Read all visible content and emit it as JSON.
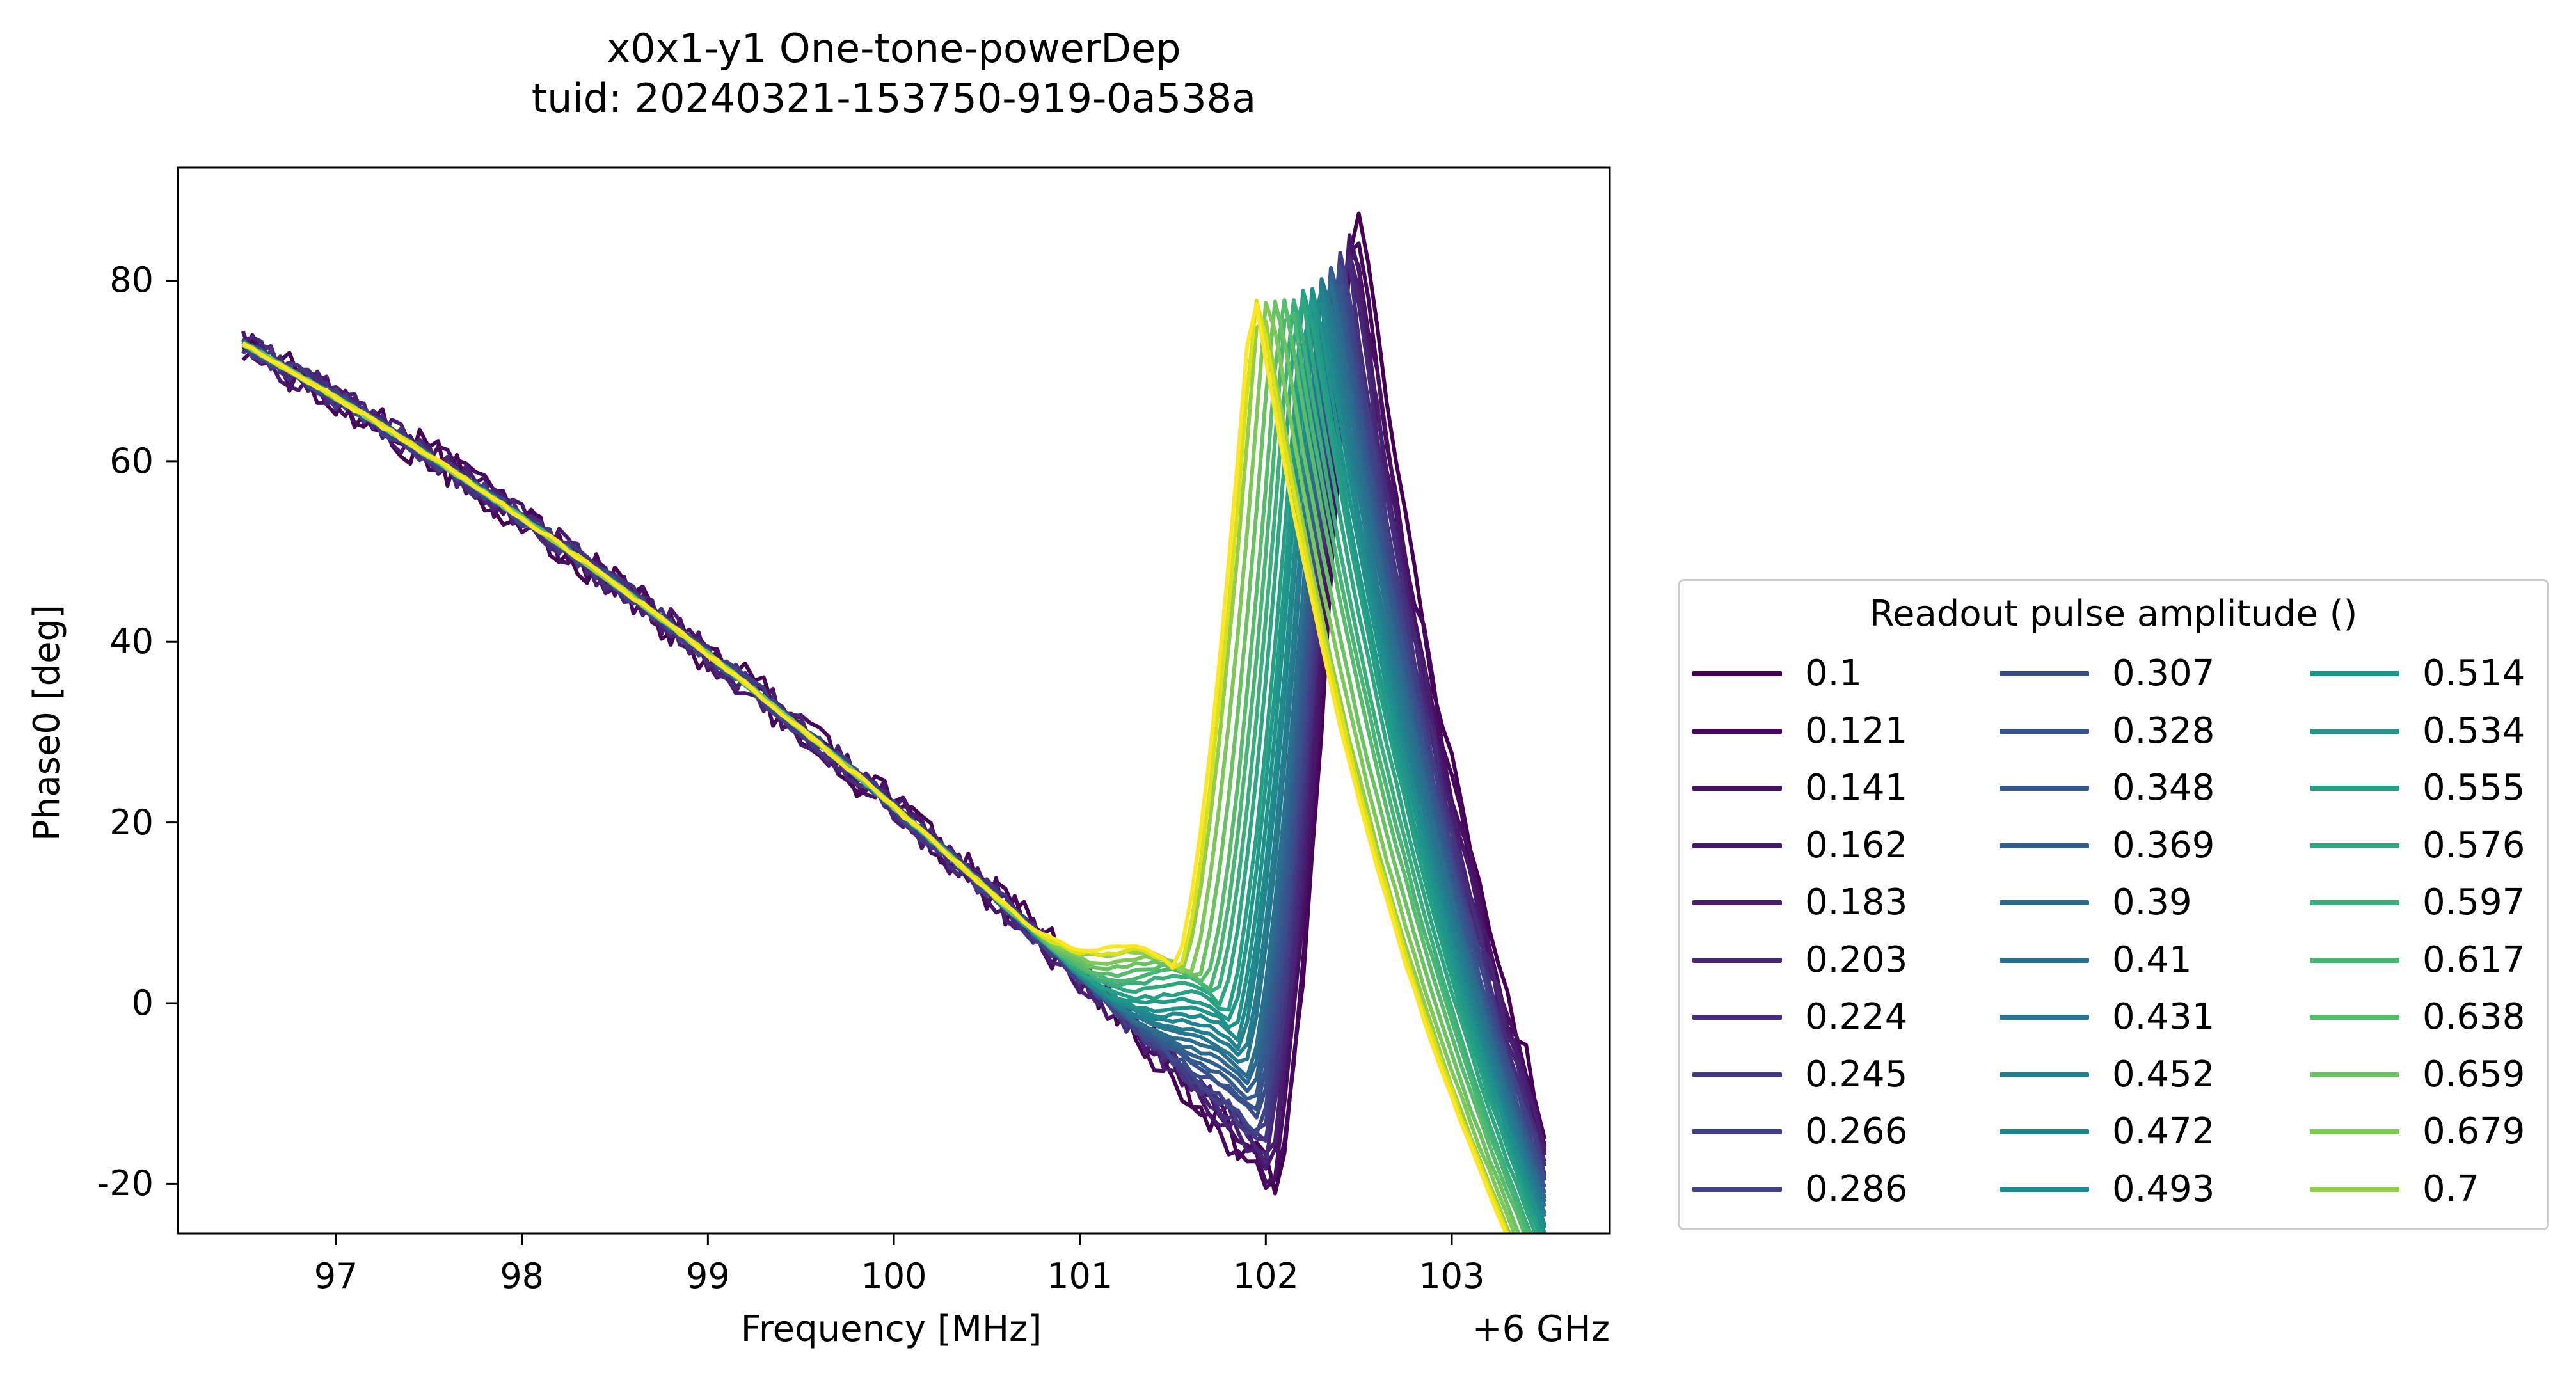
{
  "chart_data": {
    "type": "line",
    "title": "x0x1-y1 One-tone-powerDep",
    "subtitle": "tuid: 20240321-153750-919-0a538a",
    "xlabel": "Frequency [MHz]",
    "x_offset_label": "+6 GHz",
    "ylabel": "Phase0 [deg]",
    "xlim": [
      96.15,
      103.85
    ],
    "ylim": [
      -25.5,
      92.5
    ],
    "xticks": [
      "97",
      "98",
      "99",
      "100",
      "101",
      "102",
      "103"
    ],
    "yticks": [
      "-20",
      "0",
      "20",
      "40",
      "60",
      "80"
    ],
    "grid": false,
    "legend": {
      "title": "Readout pulse amplitude ()",
      "placement": "outside-right-bottom",
      "columns": 3
    },
    "colormap": "viridis",
    "x_range": [
      96.5,
      103.5
    ],
    "series": [
      {
        "name": "0.1",
        "color": "#440154",
        "f0": 102.05,
        "dip": -20,
        "peak": 87
      },
      {
        "name": "0.121",
        "color": "#46085c",
        "f0": 102.04,
        "dip": -20.5,
        "peak": 85.5
      },
      {
        "name": "0.141",
        "color": "#471063",
        "f0": 102.03,
        "dip": -19,
        "peak": 85
      },
      {
        "name": "0.162",
        "color": "#481769",
        "f0": 102.02,
        "dip": -18,
        "peak": 84
      },
      {
        "name": "0.183",
        "color": "#481f70",
        "f0": 102.01,
        "dip": -17,
        "peak": 84
      },
      {
        "name": "0.203",
        "color": "#472676",
        "f0": 102.0,
        "dip": -16.5,
        "peak": 83
      },
      {
        "name": "0.224",
        "color": "#462d7c",
        "f0": 101.99,
        "dip": -16,
        "peak": 83
      },
      {
        "name": "0.245",
        "color": "#443581",
        "f0": 101.98,
        "dip": -15.5,
        "peak": 82
      },
      {
        "name": "0.266",
        "color": "#423d84",
        "f0": 101.97,
        "dip": -15,
        "peak": 82
      },
      {
        "name": "0.286",
        "color": "#3f4487",
        "f0": 101.96,
        "dip": -14,
        "peak": 81.5
      },
      {
        "name": "0.307",
        "color": "#3b4c8a",
        "f0": 101.95,
        "dip": -13,
        "peak": 81
      },
      {
        "name": "0.328",
        "color": "#38538c",
        "f0": 101.94,
        "dip": -12,
        "peak": 81
      },
      {
        "name": "0.348",
        "color": "#345a8d",
        "f0": 101.93,
        "dip": -11,
        "peak": 80.5
      },
      {
        "name": "0.369",
        "color": "#30618e",
        "f0": 101.92,
        "dip": -10,
        "peak": 80
      },
      {
        "name": "0.39",
        "color": "#2d688e",
        "f0": 101.91,
        "dip": -9,
        "peak": 80
      },
      {
        "name": "0.41",
        "color": "#2a6f8e",
        "f0": 101.9,
        "dip": -8,
        "peak": 79.5
      },
      {
        "name": "0.431",
        "color": "#26768e",
        "f0": 101.88,
        "dip": -7,
        "peak": 79.5
      },
      {
        "name": "0.452",
        "color": "#237d8e",
        "f0": 101.87,
        "dip": -6,
        "peak": 79
      },
      {
        "name": "0.472",
        "color": "#21848d",
        "f0": 101.85,
        "dip": -5,
        "peak": 79
      },
      {
        "name": "0.493",
        "color": "#1f8b8c",
        "f0": 101.84,
        "dip": -4,
        "peak": 78.5
      },
      {
        "name": "0.514",
        "color": "#1f928a",
        "f0": 101.82,
        "dip": -3,
        "peak": 78.5
      },
      {
        "name": "0.534",
        "color": "#21998a",
        "f0": 101.8,
        "dip": -2,
        "peak": 78
      },
      {
        "name": "0.555",
        "color": "#25a085",
        "f0": 101.78,
        "dip": -1,
        "peak": 78
      },
      {
        "name": "0.576",
        "color": "#2ea780",
        "f0": 101.75,
        "dip": 0,
        "peak": 78
      },
      {
        "name": "0.597",
        "color": "#3aae7b",
        "f0": 101.72,
        "dip": 1,
        "peak": 77.5
      },
      {
        "name": "0.617",
        "color": "#48b574",
        "f0": 101.69,
        "dip": 1.5,
        "peak": 77.5
      },
      {
        "name": "0.638",
        "color": "#58bc6c",
        "f0": 101.66,
        "dip": 2,
        "peak": 77.5
      },
      {
        "name": "0.659",
        "color": "#6ac263",
        "f0": 101.62,
        "dip": 2.5,
        "peak": 77
      },
      {
        "name": "0.679",
        "color": "#7ec859",
        "f0": 101.58,
        "dip": 3,
        "peak": 77
      },
      {
        "name": "0.7",
        "color": "#92cd4e",
        "f0": 101.54,
        "dip": 3.5,
        "peak": 77
      },
      {
        "name": "0.679",
        "color": "#d8e219",
        "f0": 101.52,
        "dip": 3.5,
        "peak": 77.5
      },
      {
        "name": "0.7",
        "color": "#fde725",
        "f0": 101.5,
        "dip": 4,
        "peak": 77.5
      }
    ]
  }
}
